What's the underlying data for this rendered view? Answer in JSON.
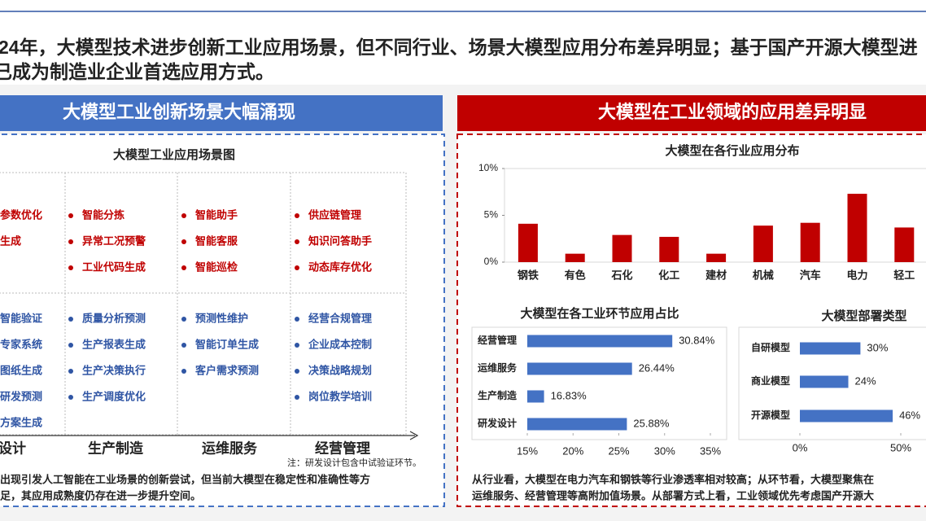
{
  "headline": [
    "24年，大模型技术进步创新工业应用场景，但不同行业、场景大模型应用分布差异明显；基于国产开源大模型进",
    "已成为制造业企业首选应用方式。"
  ],
  "left_panel": {
    "header": "大模型工业创新场景大幅涌现",
    "map_title": "大模型工业应用场景图",
    "columns": [
      {
        "label": "设计",
        "red": [
          "参数优化",
          "生成"
        ],
        "blue": [
          "智能验证",
          "专家系统",
          "图纸生成",
          "研发预测",
          "方案生成"
        ]
      },
      {
        "label": "生产制造",
        "red": [
          "智能分拣",
          "异常工况预警",
          "工业代码生成"
        ],
        "blue": [
          "质量分析预测",
          "生产报表生成",
          "生产决策执行",
          "生产调度优化"
        ]
      },
      {
        "label": "运维服务",
        "red": [
          "智能助手",
          "智能客服",
          "智能巡检"
        ],
        "blue": [
          "预测性维护",
          "智能订单生成",
          "客户需求预测"
        ]
      },
      {
        "label": "经营管理",
        "red": [
          "供应链管理",
          "知识问答助手",
          "动态库存优化"
        ],
        "blue": [
          "经营合规管理",
          "企业成本控制",
          "决策战略规划",
          "岗位教学培训"
        ]
      }
    ],
    "note": "注：研发设计包含中试验证环节。",
    "summary": [
      "出现引发人工智能在工业场景的创新尝试，但当前大模型在稳定性和准确性等方",
      "足，其应用成熟度仍存在进一步提升空间。"
    ]
  },
  "right_panel": {
    "header": "大模型在工业领域的应用差异明显",
    "summary": [
      "从行业看，大模型在电力汽车和钢铁等行业渗透率相对较高；从环节看，大模型聚焦在",
      "运维服务、经营管理等高附加值场景。从部署方式上看，工业领域优先考虑国产开源大"
    ]
  },
  "chart_data": [
    {
      "type": "bar",
      "title": "大模型在各行业应用分布",
      "color": "#c00000",
      "categories": [
        "钢铁",
        "有色",
        "石化",
        "化工",
        "建材",
        "机械",
        "汽车",
        "电力",
        "轻工"
      ],
      "values": [
        4.1,
        0.9,
        2.9,
        2.7,
        0.9,
        3.9,
        4.2,
        7.3,
        3.7
      ],
      "ylim": [
        0,
        10
      ],
      "yticks": [
        {
          "value": 0,
          "label": "0%"
        },
        {
          "value": 5,
          "label": "5%"
        },
        {
          "value": 10,
          "label": "10%"
        }
      ]
    },
    {
      "type": "hbar",
      "title": "大模型在各工业环节应用占比",
      "color": "#4472c4",
      "categories": [
        "经营管理",
        "运维服务",
        "生产制造",
        "研发设计"
      ],
      "values": [
        30.84,
        26.44,
        16.83,
        25.88
      ],
      "value_labels": [
        "30.84%",
        "26.44%",
        "16.83%",
        "25.88%"
      ],
      "xlim": [
        15,
        35
      ],
      "xticks": [
        {
          "value": 15,
          "label": "15%"
        },
        {
          "value": 20,
          "label": "20%"
        },
        {
          "value": 25,
          "label": "25%"
        },
        {
          "value": 30,
          "label": "30%"
        },
        {
          "value": 35,
          "label": "35%"
        }
      ]
    },
    {
      "type": "hbar",
      "title": "大模型部署类型",
      "color": "#4472c4",
      "categories": [
        "自研模型",
        "商业模型",
        "开源模型"
      ],
      "values": [
        30,
        24,
        46
      ],
      "value_labels": [
        "30%",
        "24%",
        "46%"
      ],
      "xlim": [
        0,
        60
      ],
      "xticks": [
        {
          "value": 0,
          "label": "0%"
        },
        {
          "value": 50,
          "label": "50%"
        }
      ]
    }
  ]
}
